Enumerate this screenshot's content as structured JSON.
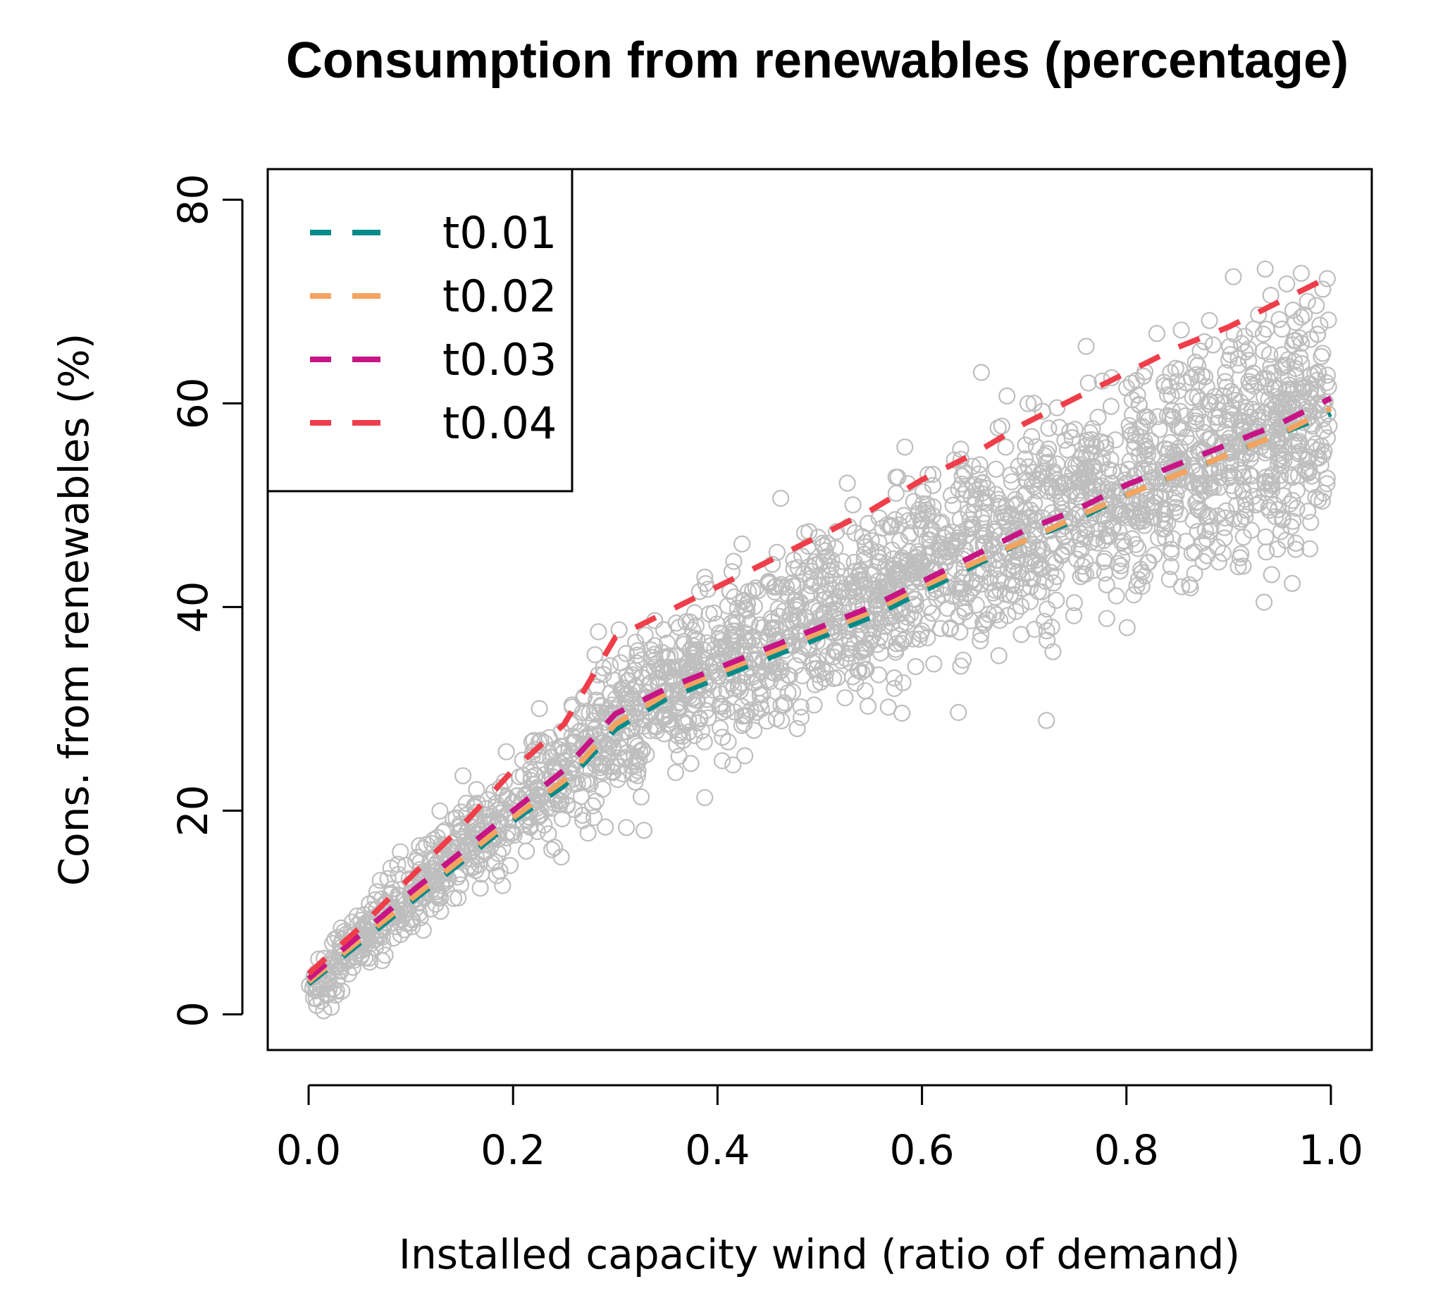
{
  "chart_data": {
    "type": "scatter",
    "title": "Consumption from renewables (percentage)",
    "xlabel": "Installed capacity wind (ratio of demand)",
    "ylabel": "Cons. from renewables (%)",
    "xlim": [
      -0.04,
      1.04
    ],
    "ylim": [
      -3.5,
      83
    ],
    "x_ticks": [
      0.0,
      0.2,
      0.4,
      0.6,
      0.8,
      1.0
    ],
    "x_tick_labels": [
      "0.0",
      "0.2",
      "0.4",
      "0.6",
      "0.8",
      "1.0"
    ],
    "y_ticks": [
      0,
      20,
      40,
      60,
      80
    ],
    "y_tick_labels": [
      "0",
      "20",
      "40",
      "60",
      "80"
    ],
    "legend_position": "top-left",
    "point_color": "#bebebe",
    "scatter_description_hidden": true,
    "scatter_cloud": {
      "n_points": 2600,
      "center_x": [
        0.0,
        0.1,
        0.2,
        0.3,
        0.4,
        0.5,
        0.6,
        0.7,
        0.8,
        0.9,
        1.0
      ],
      "center_y": [
        2,
        12,
        20,
        28,
        34,
        39,
        44,
        48,
        52,
        56,
        59
      ],
      "spread_y": [
        1.5,
        3,
        4,
        5,
        5.5,
        6,
        6.5,
        7,
        7.5,
        8,
        8
      ]
    },
    "series": [
      {
        "name": "t0.01",
        "color": "#008b8b",
        "x": [
          0.0,
          0.05,
          0.1,
          0.15,
          0.2,
          0.25,
          0.3,
          0.35,
          0.4,
          0.45,
          0.5,
          0.55,
          0.6,
          0.65,
          0.7,
          0.75,
          0.8,
          0.85,
          0.9,
          0.95,
          1.0
        ],
        "y": [
          3,
          7,
          11,
          15,
          19,
          22.5,
          28,
          31,
          33,
          35,
          37,
          39,
          41.5,
          44,
          46.5,
          48.5,
          51,
          53,
          55,
          57,
          59
        ]
      },
      {
        "name": "t0.02",
        "color": "#f4a460",
        "x": [
          0.0,
          0.05,
          0.1,
          0.15,
          0.2,
          0.25,
          0.3,
          0.35,
          0.4,
          0.45,
          0.5,
          0.55,
          0.6,
          0.65,
          0.7,
          0.75,
          0.8,
          0.85,
          0.9,
          0.95,
          1.0
        ],
        "y": [
          3.2,
          7.3,
          11.3,
          15.3,
          19.3,
          23,
          28.5,
          31.5,
          33.5,
          35.5,
          37.5,
          39.5,
          42,
          44.3,
          46.5,
          48.8,
          51,
          53,
          55,
          57,
          59.5
        ]
      },
      {
        "name": "t0.03",
        "color": "#c71585",
        "x": [
          0.0,
          0.05,
          0.1,
          0.15,
          0.2,
          0.25,
          0.3,
          0.35,
          0.4,
          0.45,
          0.5,
          0.55,
          0.6,
          0.65,
          0.7,
          0.75,
          0.8,
          0.85,
          0.9,
          0.95,
          1.0
        ],
        "y": [
          3.5,
          7.8,
          12,
          16,
          20,
          24,
          29.5,
          32,
          34,
          36,
          38,
          40,
          42.5,
          45,
          47.5,
          49.5,
          52,
          54,
          56,
          58,
          60.5
        ]
      },
      {
        "name": "t0.04",
        "color": "#ef3e4a",
        "x": [
          0.0,
          0.05,
          0.1,
          0.15,
          0.2,
          0.25,
          0.3,
          0.35,
          0.4,
          0.45,
          0.5,
          0.55,
          0.6,
          0.65,
          0.7,
          0.75,
          0.8,
          0.85,
          0.9,
          0.95,
          1.0
        ],
        "y": [
          4,
          8.5,
          13.5,
          18.5,
          24,
          28.5,
          37,
          39.5,
          42,
          44.5,
          47,
          49.5,
          52.5,
          55,
          58,
          60.5,
          63,
          65.5,
          67.5,
          70,
          72.5
        ]
      }
    ]
  }
}
